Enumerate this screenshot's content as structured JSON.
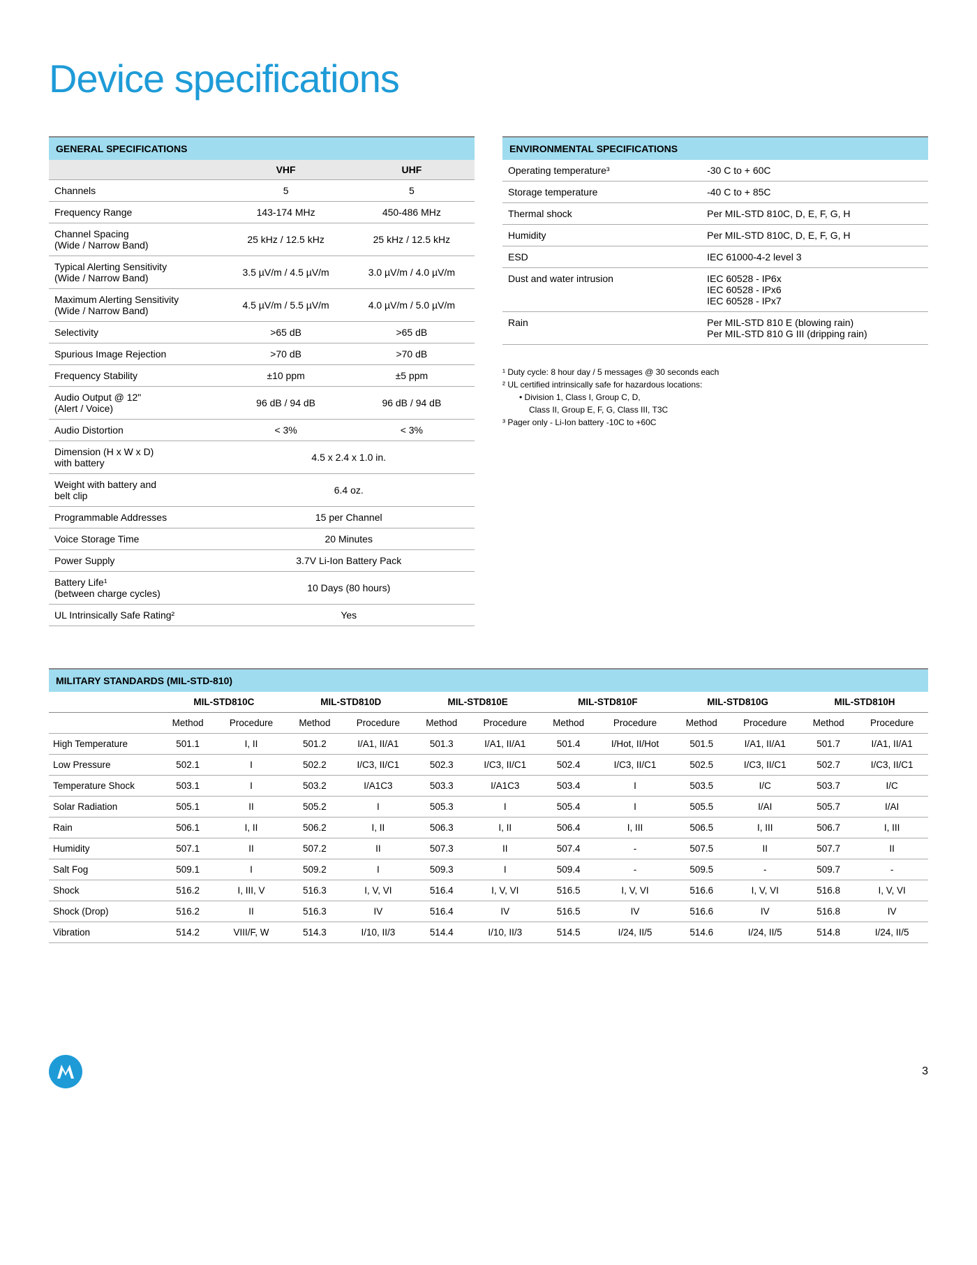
{
  "page": {
    "title": "Device specifications",
    "number": "3"
  },
  "colors": {
    "accent_blue": "#1e9bd7",
    "header_bg": "#a0dcef",
    "subheader_bg": "#e8e8e8",
    "border": "#aaaaaa"
  },
  "general": {
    "title": "GENERAL SPECIFICATIONS",
    "cols": [
      "",
      "VHF",
      "UHF"
    ],
    "two_col_rows": [
      {
        "label": "Channels",
        "vhf": "5",
        "uhf": "5"
      },
      {
        "label": "Frequency Range",
        "vhf": "143-174 MHz",
        "uhf": "450-486 MHz"
      },
      {
        "label": "Channel Spacing\n(Wide / Narrow Band)",
        "vhf": "25 kHz / 12.5 kHz",
        "uhf": "25 kHz / 12.5 kHz"
      },
      {
        "label": "Typical Alerting Sensitivity\n(Wide / Narrow Band)",
        "vhf": "3.5 µV/m / 4.5 µV/m",
        "uhf": "3.0 µV/m / 4.0 µV/m"
      },
      {
        "label": "Maximum Alerting Sensitivity\n(Wide / Narrow Band)",
        "vhf": "4.5 µV/m / 5.5 µV/m",
        "uhf": "4.0 µV/m / 5.0 µV/m"
      },
      {
        "label": "Selectivity",
        "vhf": ">65 dB",
        "uhf": ">65 dB"
      },
      {
        "label": "Spurious Image Rejection",
        "vhf": ">70 dB",
        "uhf": ">70 dB"
      },
      {
        "label": "Frequency Stability",
        "vhf": "±10 ppm",
        "uhf": "±5 ppm"
      },
      {
        "label": "Audio Output @ 12\"\n(Alert / Voice)",
        "vhf": "96 dB / 94 dB",
        "uhf": "96 dB / 94 dB"
      },
      {
        "label": "Audio Distortion",
        "vhf": "< 3%",
        "uhf": "< 3%"
      }
    ],
    "span_rows": [
      {
        "label": "Dimension (H x W x D)\nwith battery",
        "val": "4.5 x 2.4 x 1.0 in."
      },
      {
        "label": "Weight with battery and\nbelt clip",
        "val": "6.4 oz."
      },
      {
        "label": "Programmable Addresses",
        "val": "15 per Channel"
      },
      {
        "label": "Voice Storage Time",
        "val": "20 Minutes"
      },
      {
        "label": "Power Supply",
        "val": "3.7V Li-Ion Battery Pack"
      },
      {
        "label": "Battery Life¹\n(between charge cycles)",
        "val": "10 Days (80 hours)"
      },
      {
        "label": "UL Intrinsically Safe Rating²",
        "val": "Yes"
      }
    ]
  },
  "environmental": {
    "title": "ENVIRONMENTAL SPECIFICATIONS",
    "rows": [
      {
        "k": "Operating temperature³",
        "v": "-30 C to + 60C"
      },
      {
        "k": "Storage temperature",
        "v": "-40 C to + 85C"
      },
      {
        "k": "Thermal shock",
        "v": "Per MIL-STD 810C, D, E, F, G, H"
      },
      {
        "k": "Humidity",
        "v": "Per MIL-STD 810C, D, E, F, G, H"
      },
      {
        "k": "ESD",
        "v": "IEC 61000-4-2 level 3"
      },
      {
        "k": "Dust and water intrusion",
        "v": "IEC 60528 - IP6x\nIEC 60528 - IPx6\nIEC 60528 - IPx7"
      },
      {
        "k": "Rain",
        "v": "Per MIL-STD 810 E (blowing rain)\nPer MIL-STD 810 G III (dripping rain)"
      }
    ]
  },
  "footnotes": {
    "f1": "¹ Duty cycle: 8 hour day / 5 messages @ 30 seconds each",
    "f2": "² UL certified intrinsically safe for hazardous locations:",
    "f2a": "•   Division 1, Class I, Group C, D,",
    "f2b": "Class II, Group E, F, G, Class III, T3C",
    "f3": "³ Pager only - Li-Ion battery -10C to +60C"
  },
  "military": {
    "title": "MILITARY STANDARDS (MIL-STD-810)",
    "standards": [
      "MIL-STD810C",
      "MIL-STD810D",
      "MIL-STD810E",
      "MIL-STD810F",
      "MIL-STD810G",
      "MIL-STD810H"
    ],
    "sub": {
      "m": "Method",
      "p": "Procedure"
    },
    "rows": [
      {
        "label": "High Temperature",
        "c": [
          [
            "501.1",
            "I, II"
          ],
          [
            "501.2",
            "I/A1, II/A1"
          ],
          [
            "501.3",
            "I/A1, II/A1"
          ],
          [
            "501.4",
            "I/Hot, II/Hot"
          ],
          [
            "501.5",
            "I/A1, II/A1"
          ],
          [
            "501.7",
            "I/A1, II/A1"
          ]
        ]
      },
      {
        "label": "Low Pressure",
        "c": [
          [
            "502.1",
            "I"
          ],
          [
            "502.2",
            "I/C3, II/C1"
          ],
          [
            "502.3",
            "I/C3, II/C1"
          ],
          [
            "502.4",
            "I/C3, II/C1"
          ],
          [
            "502.5",
            "I/C3, II/C1"
          ],
          [
            "502.7",
            "I/C3, II/C1"
          ]
        ]
      },
      {
        "label": "Temperature Shock",
        "c": [
          [
            "503.1",
            "I"
          ],
          [
            "503.2",
            "I/A1C3"
          ],
          [
            "503.3",
            "I/A1C3"
          ],
          [
            "503.4",
            "I"
          ],
          [
            "503.5",
            "I/C"
          ],
          [
            "503.7",
            "I/C"
          ]
        ]
      },
      {
        "label": "Solar Radiation",
        "c": [
          [
            "505.1",
            "II"
          ],
          [
            "505.2",
            "I"
          ],
          [
            "505.3",
            "I"
          ],
          [
            "505.4",
            "I"
          ],
          [
            "505.5",
            "I/AI"
          ],
          [
            "505.7",
            "I/AI"
          ]
        ]
      },
      {
        "label": "Rain",
        "c": [
          [
            "506.1",
            "I, II"
          ],
          [
            "506.2",
            "I, II"
          ],
          [
            "506.3",
            "I, II"
          ],
          [
            "506.4",
            "I, III"
          ],
          [
            "506.5",
            "I, III"
          ],
          [
            "506.7",
            "I, III"
          ]
        ]
      },
      {
        "label": "Humidity",
        "c": [
          [
            "507.1",
            "II"
          ],
          [
            "507.2",
            "II"
          ],
          [
            "507.3",
            "II"
          ],
          [
            "507.4",
            "-"
          ],
          [
            "507.5",
            "II"
          ],
          [
            "507.7",
            "II"
          ]
        ]
      },
      {
        "label": "Salt Fog",
        "c": [
          [
            "509.1",
            "I"
          ],
          [
            "509.2",
            "I"
          ],
          [
            "509.3",
            "I"
          ],
          [
            "509.4",
            "-"
          ],
          [
            "509.5",
            "-"
          ],
          [
            "509.7",
            "-"
          ]
        ]
      },
      {
        "label": "Shock",
        "c": [
          [
            "516.2",
            "I, III, V"
          ],
          [
            "516.3",
            "I, V, VI"
          ],
          [
            "516.4",
            "I, V, VI"
          ],
          [
            "516.5",
            "I, V, VI"
          ],
          [
            "516.6",
            "I, V, VI"
          ],
          [
            "516.8",
            "I, V, VI"
          ]
        ]
      },
      {
        "label": "Shock (Drop)",
        "c": [
          [
            "516.2",
            "II"
          ],
          [
            "516.3",
            "IV"
          ],
          [
            "516.4",
            "IV"
          ],
          [
            "516.5",
            "IV"
          ],
          [
            "516.6",
            "IV"
          ],
          [
            "516.8",
            "IV"
          ]
        ]
      },
      {
        "label": "Vibration",
        "c": [
          [
            "514.2",
            "VIII/F, W"
          ],
          [
            "514.3",
            "I/10, II/3"
          ],
          [
            "514.4",
            "I/10, II/3"
          ],
          [
            "514.5",
            "I/24, II/5"
          ],
          [
            "514.6",
            "I/24, II/5"
          ],
          [
            "514.8",
            "I/24, II/5"
          ]
        ]
      }
    ]
  }
}
